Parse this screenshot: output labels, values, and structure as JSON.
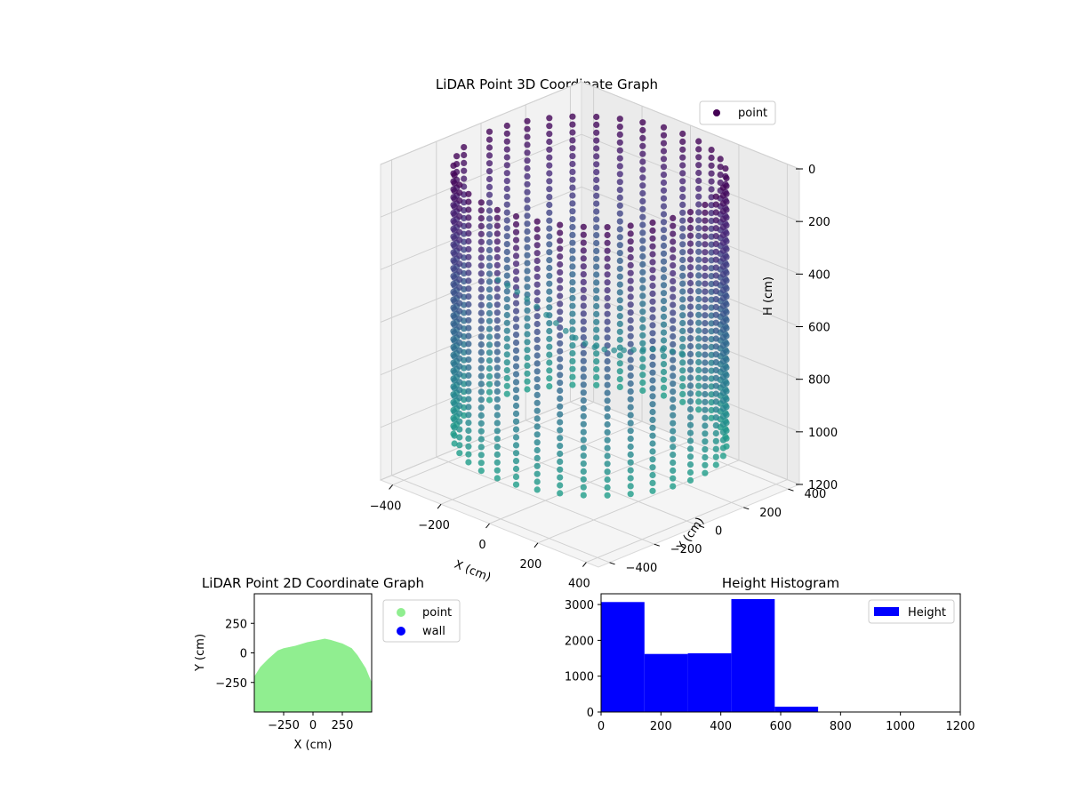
{
  "chart_data": [
    {
      "type": "scatter",
      "projection": "3d",
      "title": "LiDAR Point 3D Coordinate Graph",
      "xlabel": "X (cm)",
      "ylabel": "Y (cm)",
      "zlabel": "H (cm)",
      "x_ticks": [
        "−400",
        "−200",
        "0",
        "200",
        "400"
      ],
      "y_ticks": [
        "−400",
        "−200",
        "0",
        "200",
        "400"
      ],
      "z_ticks": [
        "0",
        "200",
        "400",
        "600",
        "800",
        "1000",
        "1200"
      ],
      "xlim": [
        -450,
        450
      ],
      "ylim": [
        -450,
        450
      ],
      "zlim": [
        0,
        1200
      ],
      "z_inverted": true,
      "colormap": "viridis",
      "legend": [
        "point"
      ],
      "legend_position": "top-right",
      "series": [
        {
          "name": "point",
          "shape": "cylindrical wall of points with floor mound",
          "wall_radius": 415,
          "wall_center": [
            0,
            0
          ],
          "height_range": [
            0,
            1050
          ],
          "column_angles_deg": [
            -160,
            -150,
            -140,
            -130,
            -120,
            -110,
            -100,
            -90,
            -80,
            -70,
            -60,
            -50,
            -40,
            -30,
            -20,
            -10,
            0,
            10,
            20,
            30,
            40,
            50,
            60,
            70,
            80,
            90,
            100,
            110,
            120,
            130,
            140,
            150,
            160,
            170,
            180
          ]
        }
      ],
      "grid": true,
      "pane_color": "#f2f2f2"
    },
    {
      "type": "scatter",
      "title": "LiDAR Point 2D Coordinate Graph",
      "xlabel": "X (cm)",
      "ylabel": "Y (cm)",
      "x_ticks": [
        "−250",
        "0",
        "250"
      ],
      "y_ticks": [
        "250",
        "0",
        "−250"
      ],
      "xlim": [
        -500,
        500
      ],
      "ylim": [
        -500,
        500
      ],
      "legend": [
        "point",
        "wall"
      ],
      "legend_position": "outside-right",
      "series": [
        {
          "name": "point",
          "color": "#90ee90",
          "outline": [
            [
              -500,
              -500
            ],
            [
              -500,
              -200
            ],
            [
              -450,
              -120
            ],
            [
              -380,
              -50
            ],
            [
              -300,
              20
            ],
            [
              -250,
              40
            ],
            [
              -150,
              60
            ],
            [
              -50,
              90
            ],
            [
              50,
              110
            ],
            [
              100,
              120
            ],
            [
              150,
              110
            ],
            [
              250,
              80
            ],
            [
              330,
              40
            ],
            [
              380,
              -20
            ],
            [
              450,
              -130
            ],
            [
              500,
              -250
            ],
            [
              500,
              -500
            ]
          ]
        },
        {
          "name": "wall",
          "color": "#0000ff",
          "points": []
        }
      ]
    },
    {
      "type": "bar",
      "title": "Height Histogram",
      "xlabel": "",
      "ylabel": "",
      "x_ticks": [
        "0",
        "200",
        "400",
        "600",
        "800",
        "1000",
        "1200"
      ],
      "y_ticks": [
        "0",
        "1000",
        "2000",
        "3000"
      ],
      "xlim": [
        0,
        1200
      ],
      "ylim": [
        0,
        3300
      ],
      "legend": [
        "Height"
      ],
      "legend_position": "top-right",
      "series": [
        {
          "name": "Height",
          "color": "#0000ff",
          "bins": [
            [
              0,
              145,
              3070
            ],
            [
              145,
              290,
              1620
            ],
            [
              290,
              435,
              1640
            ],
            [
              435,
              580,
              3150
            ],
            [
              580,
              725,
              150
            ],
            [
              725,
              870,
              8
            ],
            [
              870,
              1015,
              5
            ],
            [
              1015,
              1160,
              3
            ]
          ]
        }
      ]
    }
  ]
}
